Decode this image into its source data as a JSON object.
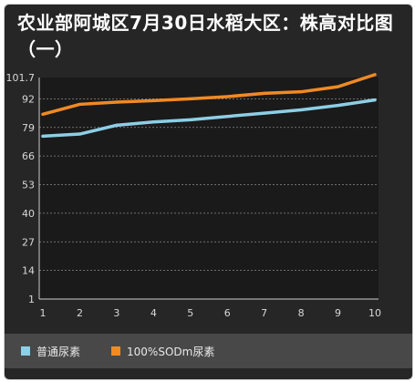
{
  "chart_data": {
    "type": "line",
    "title": "农业部阿城区7月30日水稻大区：株高对比图（一）",
    "x": [
      "1",
      "2",
      "3",
      "4",
      "5",
      "6",
      "7",
      "8",
      "9",
      "10"
    ],
    "yticks": [
      "101.7",
      "92",
      "79",
      "66",
      "53",
      "40",
      "27",
      "14",
      "1"
    ],
    "ylim": [
      1,
      101.7
    ],
    "grid": true,
    "legend_position": "bottom",
    "series": [
      {
        "name": "普通尿素",
        "color": "#8ccfe6",
        "values": [
          75,
          76,
          80,
          81.5,
          82.5,
          84,
          85.5,
          87,
          89,
          91.5
        ]
      },
      {
        "name": "100%SODm尿素",
        "color": "#f08a24",
        "values": [
          85,
          89.5,
          90.5,
          91.2,
          92,
          93,
          94.5,
          95.2,
          97.5,
          103
        ]
      }
    ]
  }
}
